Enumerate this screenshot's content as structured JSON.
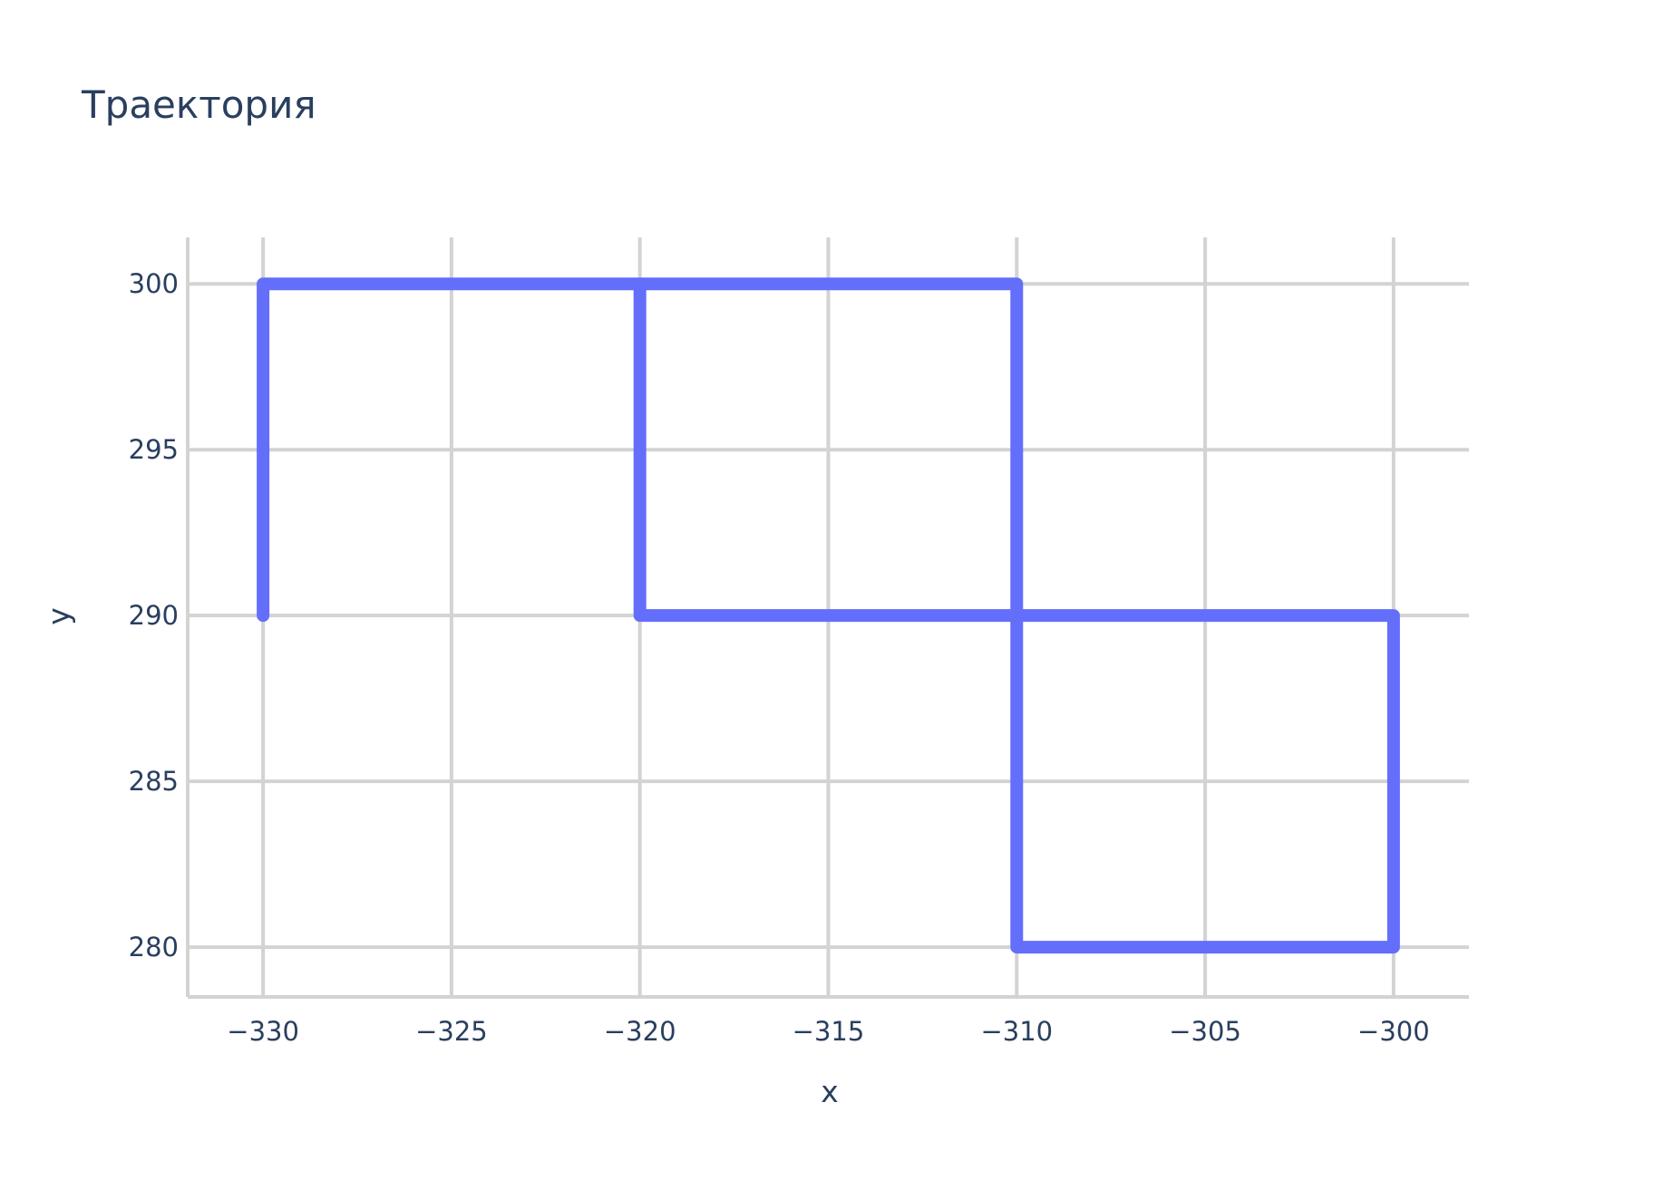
{
  "chart_data": {
    "type": "line",
    "title": "Траектория",
    "xlabel": "x",
    "ylabel": "y",
    "xlim": [
      -332,
      -298
    ],
    "ylim": [
      278.5,
      301.4
    ],
    "xticks": [
      -330,
      -325,
      -320,
      -315,
      -310,
      -305,
      -300
    ],
    "yticks": [
      280,
      285,
      290,
      295,
      300
    ],
    "xtick_labels": [
      "−330",
      "−325",
      "−320",
      "−315",
      "−310",
      "−305",
      "−300"
    ],
    "ytick_labels": [
      "280",
      "285",
      "290",
      "295",
      "300"
    ],
    "grid": true,
    "series": [
      {
        "color": "#636efa",
        "x": [
          -330,
          -330,
          -310,
          -310,
          -300,
          -300,
          -320,
          -320
        ],
        "y": [
          290,
          300,
          300,
          280,
          280,
          290,
          290,
          300
        ]
      }
    ]
  }
}
